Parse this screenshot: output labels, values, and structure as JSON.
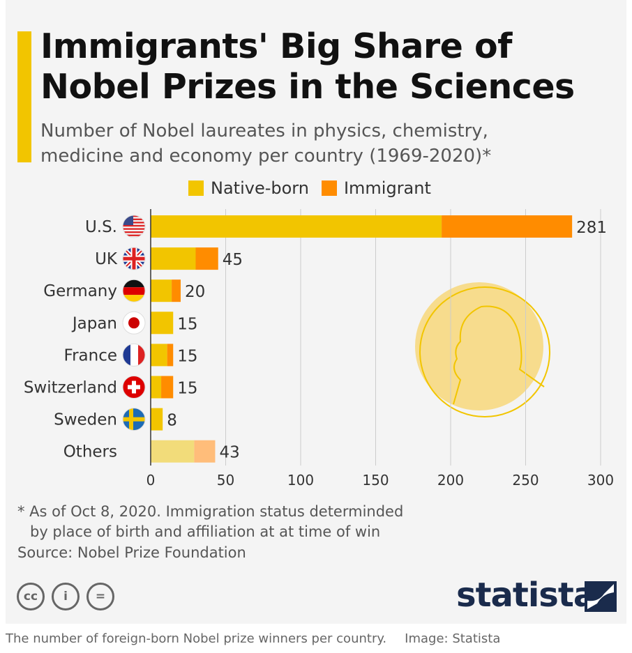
{
  "header": {
    "title_line1": "Immigrants' Big Share of",
    "title_line2": "Nobel Prizes in the Sciences",
    "subtitle_line1": "Number of Nobel laureates in physics, chemistry,",
    "subtitle_line2": "medicine and economy per country (1969-2020)*"
  },
  "colors": {
    "native": "#f2c500",
    "immigrant": "#ff8c00",
    "others_native": "#f2dc7a",
    "others_immigrant": "#ffbd7a",
    "accent": "#f2c500"
  },
  "chart_data": {
    "type": "bar",
    "orientation": "horizontal",
    "stacked": true,
    "title": "Immigrants' Big Share of Nobel Prizes in the Sciences",
    "categories": [
      "U.S.",
      "UK",
      "Germany",
      "Japan",
      "France",
      "Switzerland",
      "Sweden",
      "Others"
    ],
    "flags": [
      "us-flag-icon",
      "uk-flag-icon",
      "germany-flag-icon",
      "japan-flag-icon",
      "france-flag-icon",
      "switzerland-flag-icon",
      "sweden-flag-icon",
      null
    ],
    "series": [
      {
        "name": "Native-born",
        "values": [
          194,
          30,
          14,
          15,
          11,
          7,
          8,
          29
        ]
      },
      {
        "name": "Immigrant",
        "values": [
          87,
          15,
          6,
          0,
          4,
          8,
          0,
          14
        ]
      }
    ],
    "totals": [
      "281",
      "45",
      "20",
      "15",
      "15",
      "15",
      "8",
      "43"
    ],
    "xlim": [
      0,
      300
    ],
    "xticks": [
      "0",
      "50",
      "100",
      "150",
      "200",
      "250",
      "300"
    ],
    "legend": "top",
    "grid": true
  },
  "footer": {
    "note_line1": "* As of Oct 8, 2020. Immigration status determinded",
    "note_line2": "by place of birth and affiliation at at time of win",
    "source": "Source: Nobel Prize Foundation",
    "license_icons": [
      "cc",
      "i",
      "="
    ],
    "logo": "statista"
  },
  "caption": {
    "text": "The number of foreign-born Nobel prize winners per country.",
    "credit": "Image: Statista"
  }
}
